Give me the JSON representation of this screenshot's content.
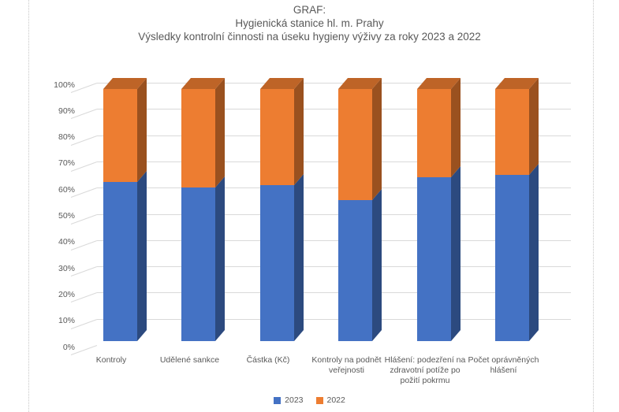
{
  "title": {
    "line1": "GRAF:",
    "line2": "Hygienická stanice hl. m. Prahy",
    "line3": "Výsledky kontrolní činnosti na úseku hygieny výživy za roky 2023 a 2022"
  },
  "y_axis": {
    "tick_labels": [
      "0%",
      "10%",
      "20%",
      "30%",
      "40%",
      "50%",
      "60%",
      "70%",
      "80%",
      "90%",
      "100%"
    ]
  },
  "legend": {
    "items": [
      {
        "label": "2023",
        "color": "#4472C4"
      },
      {
        "label": "2022",
        "color": "#ED7D31"
      }
    ]
  },
  "chart_data": {
    "type": "bar",
    "variant": "100-percent-stacked-column-3d",
    "title": "GRAF: Hygienická stanice hl. m. Prahy — Výsledky kontrolní činnosti na úseku hygieny výživy za roky 2023 a 2022",
    "categories": [
      "Kontroly",
      "Udělené sankce",
      "Částka (Kč)",
      "Kontroly na podnět veřejnosti",
      "Hlášení: podezření na zdravotní potíže po požití pokrmu",
      "Počet oprávněných hlášení"
    ],
    "series": [
      {
        "name": "2023",
        "color": "#4472C4",
        "values_pct": [
          63,
          61,
          62,
          56,
          65,
          66
        ]
      },
      {
        "name": "2022",
        "color": "#ED7D31",
        "values_pct": [
          37,
          39,
          38,
          44,
          35,
          34
        ]
      }
    ],
    "xlabel": "",
    "ylabel": "",
    "ylim": [
      0,
      100
    ],
    "ytick_step": 10,
    "grid": true,
    "legend_position": "bottom"
  },
  "colors": {
    "bar_2023_front": "#4472C4",
    "bar_2023_side": "#2C4A7F",
    "bar_2022_front": "#ED7D31",
    "bar_2022_side": "#9A511F",
    "bar_2022_top": "#BE6427",
    "gridline": "#D9D9D9",
    "text": "#595959",
    "page_break_line": "#C6C6C6"
  }
}
